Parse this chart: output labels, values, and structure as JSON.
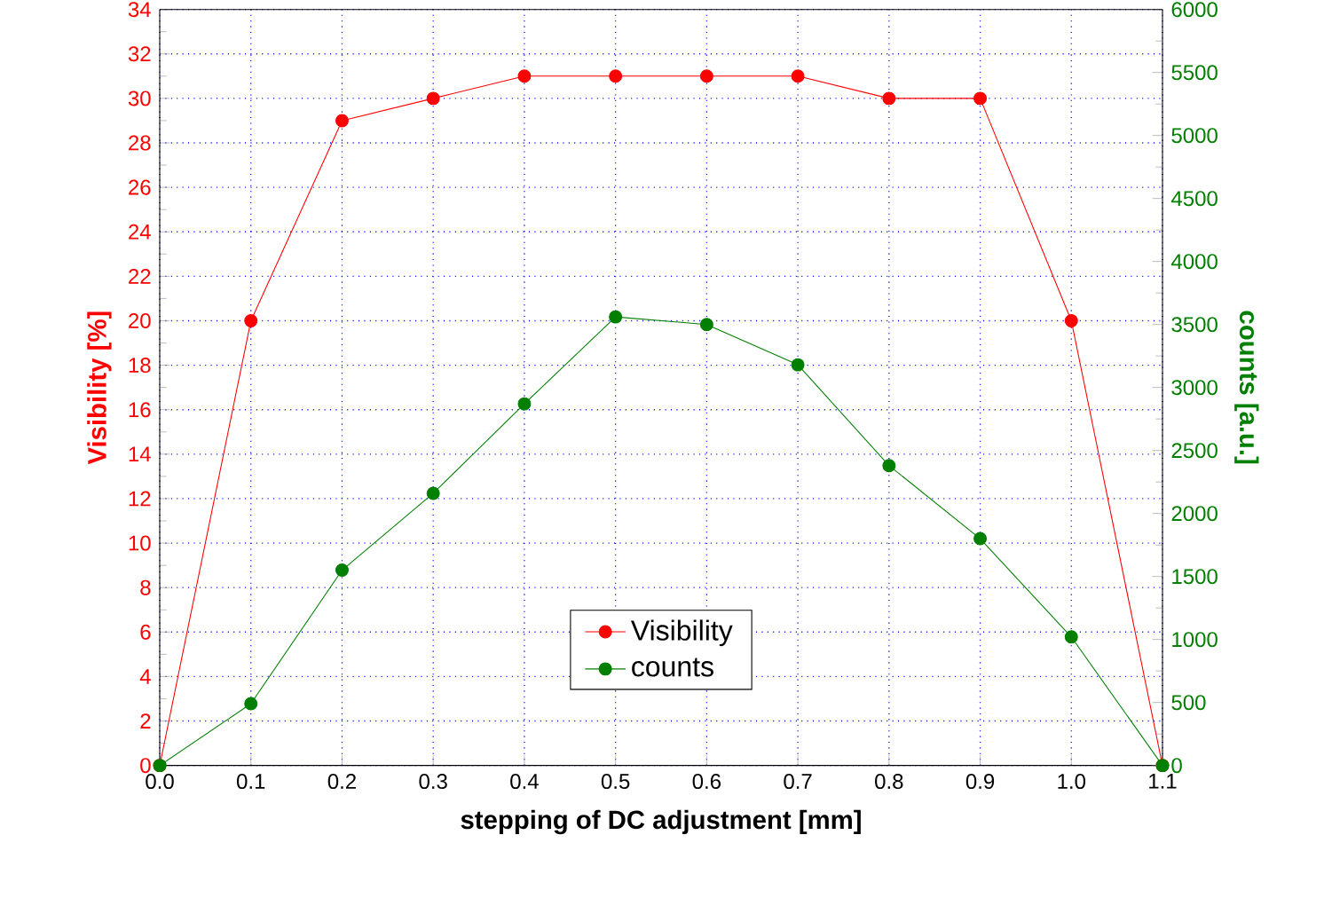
{
  "chart_data": {
    "type": "line",
    "xlabel": "stepping of DC adjustment [mm]",
    "ylabel": "Visibility [%]",
    "y2label": "counts [a.u.]",
    "x": [
      0.0,
      0.1,
      0.2,
      0.3,
      0.4,
      0.5,
      0.6,
      0.7,
      0.8,
      0.9,
      1.0,
      1.1
    ],
    "series": [
      {
        "name": "Visibility",
        "color": "#ff0000",
        "values": [
          0,
          20,
          29,
          30,
          31,
          31,
          31,
          31,
          30,
          30,
          20,
          0
        ]
      },
      {
        "name": "counts",
        "color": "#007f00",
        "axis": "y2",
        "values": [
          0,
          490,
          1550,
          2160,
          2870,
          3560,
          3500,
          3180,
          2380,
          1800,
          1020,
          0
        ]
      }
    ],
    "xlim": [
      0.0,
      1.1
    ],
    "xticks": [
      {
        "value": 0.0,
        "label": "0.0"
      },
      0.1,
      0.2,
      0.3,
      0.4,
      0.5,
      0.6,
      0.7,
      0.8,
      0.9,
      {
        "value": 1.0,
        "label": "1.0"
      },
      1.1
    ],
    "ylim": [
      0,
      34
    ],
    "yticks": [
      0,
      2,
      4,
      6,
      8,
      10,
      12,
      14,
      16,
      18,
      20,
      22,
      24,
      26,
      28,
      30,
      32,
      34
    ],
    "y2lim": [
      0,
      6000
    ],
    "y2ticks": [
      0,
      500,
      1000,
      1500,
      2000,
      2500,
      3000,
      3500,
      4000,
      4500,
      5000,
      5500,
      6000
    ],
    "grid": true,
    "legend": "bottom",
    "marker": "circle",
    "line_style": "solid"
  }
}
